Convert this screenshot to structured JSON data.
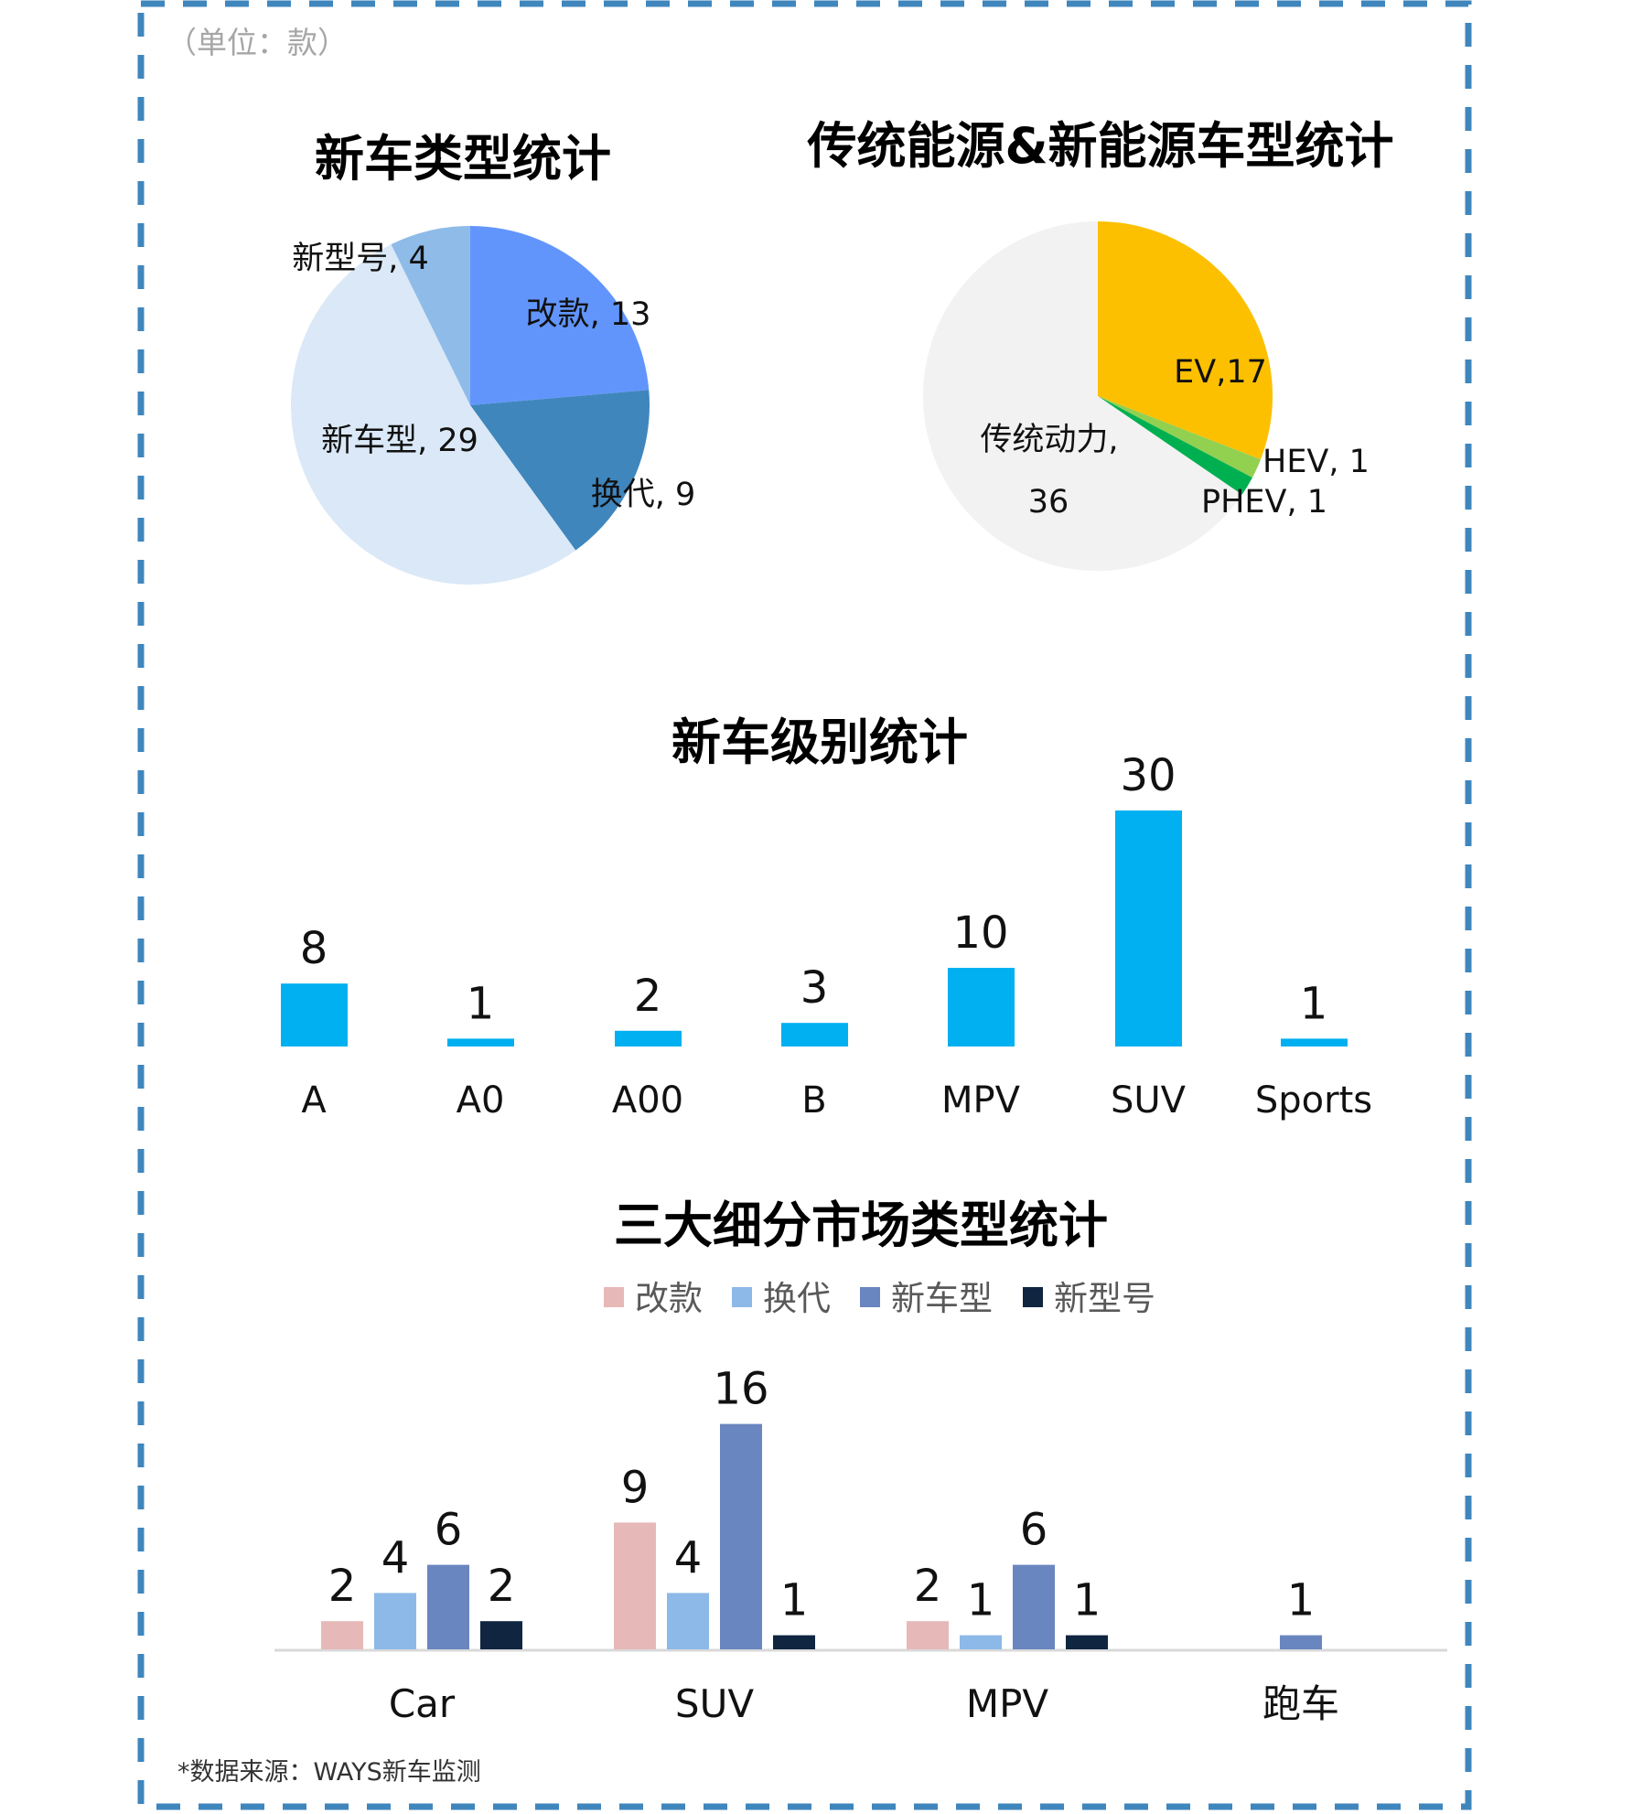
{
  "unit_note": "（单位：款）",
  "footer": "*数据来源：WAYS新车监测",
  "colors": {
    "border": "#3f86bd"
  },
  "chart_data": [
    {
      "type": "pie",
      "title": "新车类型统计",
      "slices": [
        {
          "label": "改款",
          "value": 13,
          "text": "改款, 13",
          "color": "#6295fc"
        },
        {
          "label": "换代",
          "value": 9,
          "text": "换代, 9",
          "color": "#3f86bd"
        },
        {
          "label": "新车型",
          "value": 29,
          "text": "新车型, 29",
          "color": "#dae8f7"
        },
        {
          "label": "新型号",
          "value": 4,
          "text": "新型号, 4",
          "color": "#8fbbe8"
        }
      ]
    },
    {
      "type": "pie",
      "title": "传统能源&新能源车型统计",
      "slices": [
        {
          "label": "EV",
          "value": 17,
          "text": "EV,17",
          "color": "#fdc000"
        },
        {
          "label": "HEV",
          "value": 1,
          "text": "HEV, 1",
          "color": "#92d050"
        },
        {
          "label": "PHEV",
          "value": 1,
          "text": "PHEV, 1",
          "color": "#00b050"
        },
        {
          "label": "传统动力",
          "value": 36,
          "text": "传统动力,",
          "text2": "36",
          "color": "#f2f2f2"
        }
      ]
    },
    {
      "type": "bar",
      "title": "新车级别统计",
      "categories": [
        "A",
        "A0",
        "A00",
        "B",
        "MPV",
        "SUV",
        "Sports"
      ],
      "values": [
        8,
        1,
        2,
        3,
        10,
        30,
        1
      ],
      "color": "#00b0f0"
    },
    {
      "type": "bar",
      "title": "三大细分市场类型统计",
      "legend": "top",
      "categories": [
        "Car",
        "SUV",
        "MPV",
        "跑车"
      ],
      "series": [
        {
          "name": "改款",
          "values": [
            2,
            9,
            2,
            null
          ],
          "color": "#e6b9b8"
        },
        {
          "name": "换代",
          "values": [
            4,
            4,
            1,
            null
          ],
          "color": "#8db9e8"
        },
        {
          "name": "新车型",
          "values": [
            6,
            16,
            6,
            1
          ],
          "color": "#6a86c0"
        },
        {
          "name": "新型号",
          "values": [
            2,
            1,
            1,
            null
          ],
          "color": "#0f2540"
        }
      ]
    }
  ]
}
